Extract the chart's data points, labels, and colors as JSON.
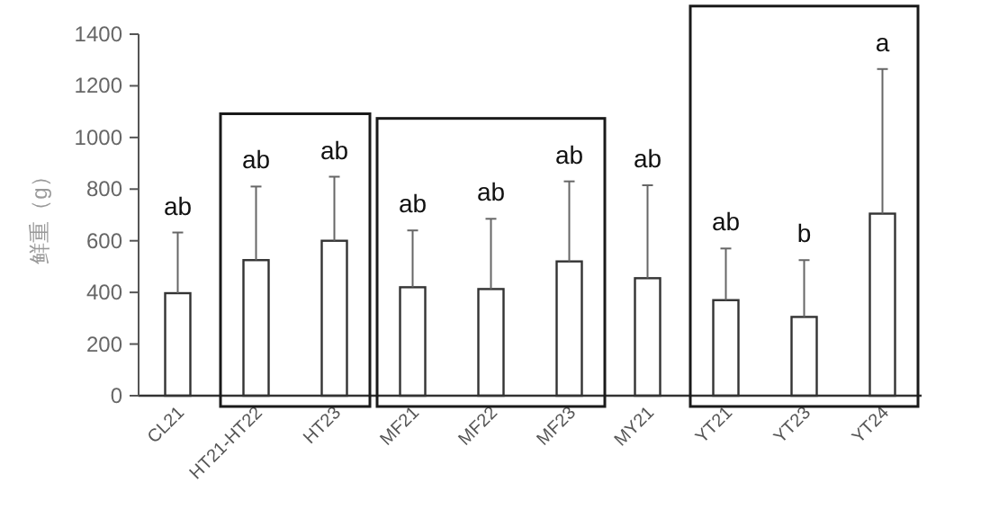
{
  "chart_data": {
    "type": "bar",
    "ylabel": "鲜重（g）",
    "categories": [
      "CL21",
      "HT21-HT22",
      "HT23",
      "MF21",
      "MF22",
      "MF23",
      "MY21",
      "YT21",
      "YT23",
      "YT24"
    ],
    "values": [
      397,
      525,
      600,
      420,
      413,
      520,
      455,
      370,
      305,
      705
    ],
    "errors": [
      [
        397,
        632
      ],
      [
        525,
        810
      ],
      [
        600,
        848
      ],
      [
        420,
        640
      ],
      [
        413,
        685
      ],
      [
        520,
        830
      ],
      [
        455,
        815
      ],
      [
        370,
        570
      ],
      [
        305,
        525
      ],
      [
        705,
        1265
      ]
    ],
    "annotations": [
      "ab",
      "ab",
      "ab",
      "ab",
      "ab",
      "ab",
      "ab",
      "ab",
      "b",
      "a"
    ],
    "color": "#ffffff",
    "ylim": [
      0,
      1400
    ],
    "yticks": [
      0,
      200,
      400,
      600,
      800,
      1000,
      1200,
      1400
    ]
  }
}
